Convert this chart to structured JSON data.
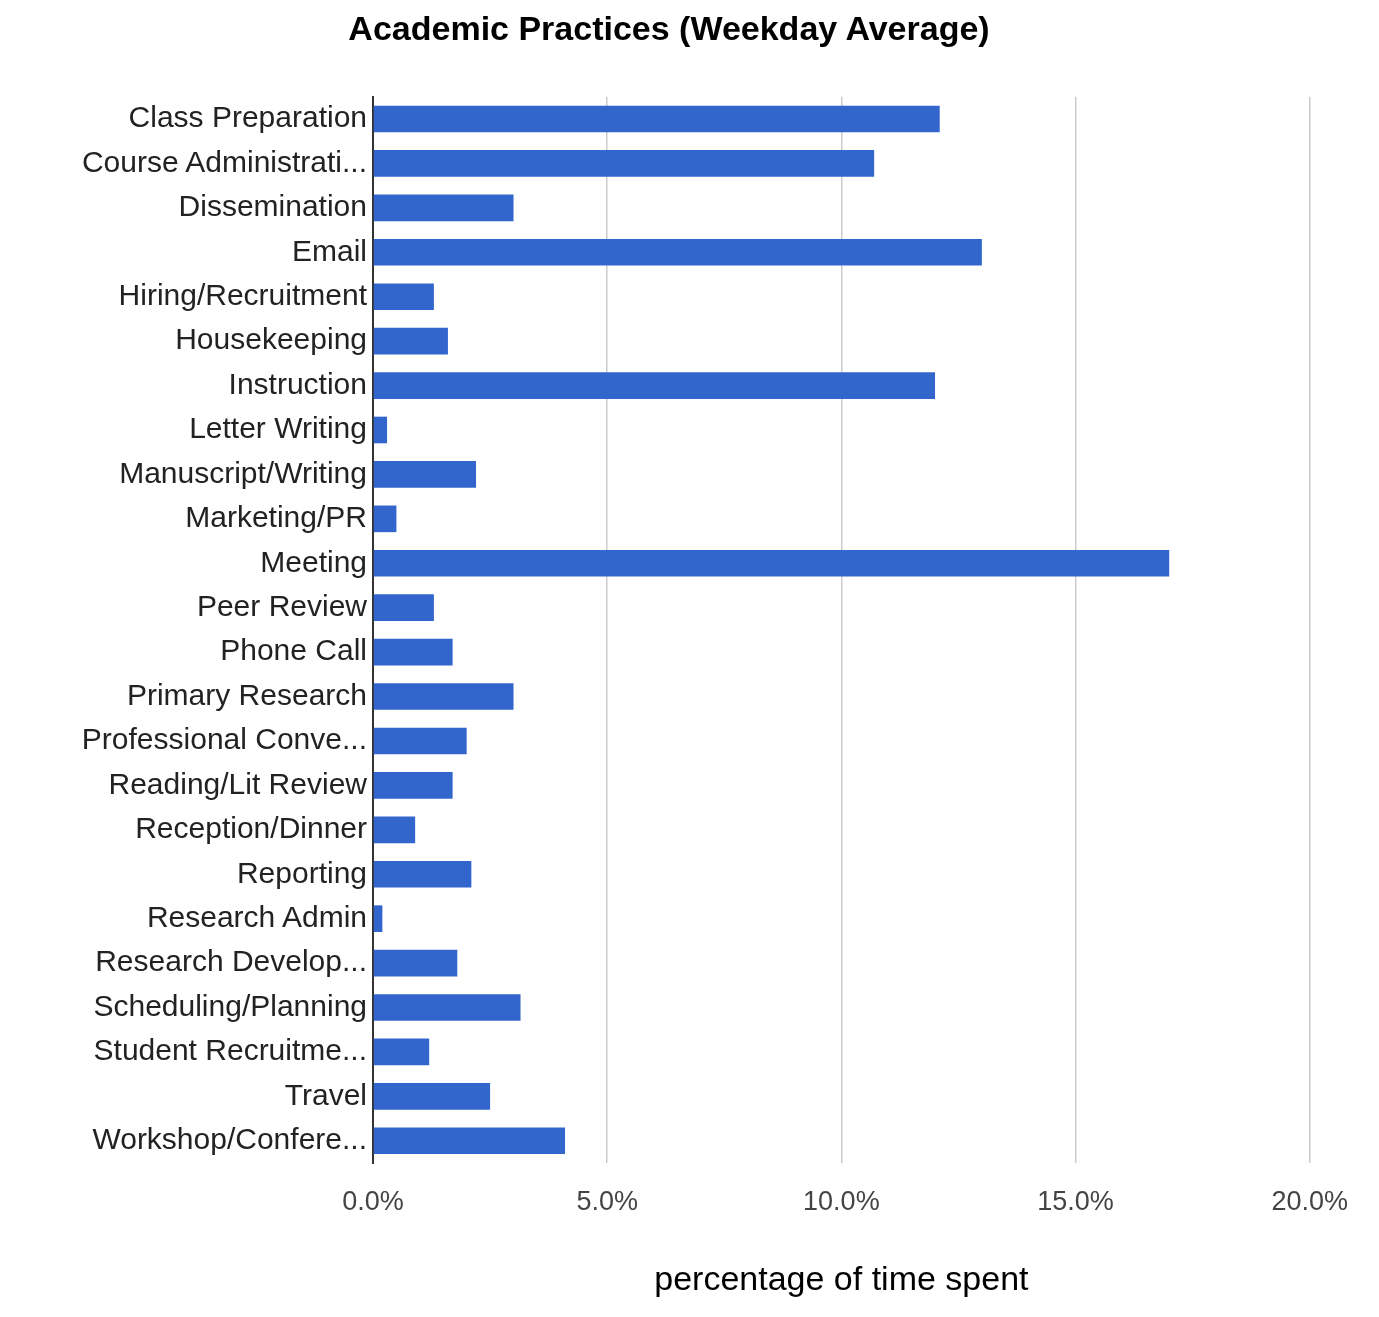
{
  "chart_data": {
    "type": "bar",
    "orientation": "horizontal",
    "title": "Academic Practices (Weekday Average)",
    "xlabel": "percentage of time spent",
    "categories": [
      "Class Preparation",
      "Course Administrati...",
      "Dissemination",
      "Email",
      "Hiring/Recruitment",
      "Housekeeping",
      "Instruction",
      "Letter Writing",
      "Manuscript/Writing",
      "Marketing/PR",
      "Meeting",
      "Peer Review",
      "Phone Call",
      "Primary Research",
      "Professional Conve...",
      "Reading/Lit Review",
      "Reception/Dinner",
      "Reporting",
      "Research Admin",
      "Research Develop...",
      "Scheduling/Planning",
      "Student Recruitme...",
      "Travel",
      "Workshop/Confere..."
    ],
    "values": [
      12.1,
      10.7,
      3.0,
      13.0,
      1.3,
      1.6,
      12.0,
      0.3,
      2.2,
      0.5,
      17.0,
      1.3,
      1.7,
      3.0,
      2.0,
      1.7,
      0.9,
      2.1,
      0.2,
      1.8,
      3.15,
      1.2,
      2.5,
      4.1
    ],
    "color": "#3366cc",
    "xlim": [
      0,
      20
    ],
    "xticks": [
      {
        "value": 0,
        "label": "0.0%"
      },
      {
        "value": 5,
        "label": "5.0%"
      },
      {
        "value": 10,
        "label": "10.0%"
      },
      {
        "value": 15,
        "label": "15.0%"
      },
      {
        "value": 20,
        "label": "20.0%"
      }
    ],
    "grid": "x"
  }
}
